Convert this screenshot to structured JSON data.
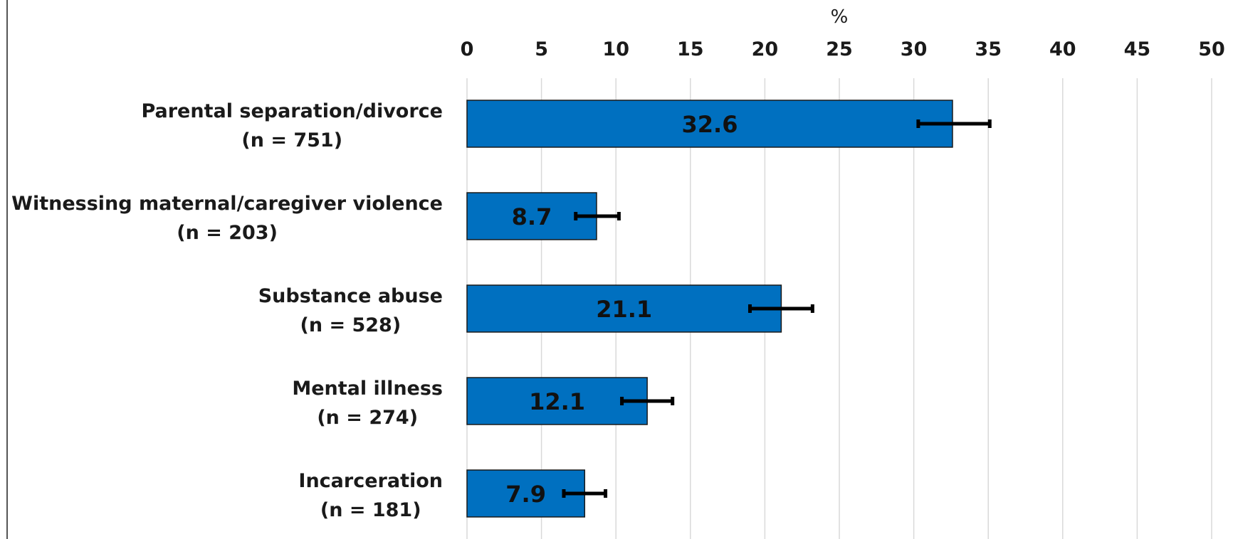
{
  "chart_data": {
    "type": "bar",
    "orientation": "horizontal",
    "xlabel": "%",
    "xlim": [
      0,
      50
    ],
    "x_ticks": [
      "0",
      "5",
      "10",
      "15",
      "20",
      "25",
      "30",
      "35",
      "40",
      "45",
      "50"
    ],
    "x_axis_position": "top",
    "grid": true,
    "categories": [
      [
        "Parental separation/divorce",
        "(n = 751)"
      ],
      [
        "Witnessing maternal/caregiver violence",
        "(n = 203)"
      ],
      [
        "Substance abuse",
        "(n = 528)"
      ],
      [
        "Mental illness",
        "(n = 274)"
      ],
      [
        "Incarceration",
        "(n = 181)"
      ]
    ],
    "values": [
      32.6,
      8.7,
      21.1,
      12.1,
      7.9
    ],
    "data_labels": [
      "32.6",
      "8.7",
      "21.1",
      "12.1",
      "7.9"
    ],
    "error_bars": [
      {
        "low": 30.3,
        "high": 35.1
      },
      {
        "low": 7.3,
        "high": 10.2
      },
      {
        "low": 19.0,
        "high": 23.2
      },
      {
        "low": 10.4,
        "high": 13.8
      },
      {
        "low": 6.5,
        "high": 9.3
      }
    ],
    "colors": {
      "bar": "#0070C0",
      "bar_border": "#1a1a1a",
      "error_bar": "#000000"
    }
  }
}
